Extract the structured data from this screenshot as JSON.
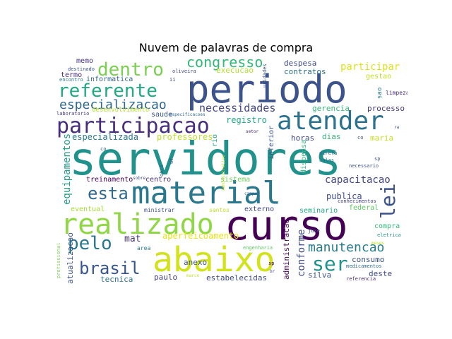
{
  "title": "Nuvem de palavras de compra",
  "palette": [
    "#440154",
    "#3b528b",
    "#21908d",
    "#5dc863",
    "#fde725"
  ],
  "words": [
    {
      "text": "servidores",
      "color": "#21918c"
    },
    {
      "text": "material",
      "color": "#2a788e"
    },
    {
      "text": "periodo",
      "color": "#3b528b"
    },
    {
      "text": "curso",
      "color": "#440154"
    },
    {
      "text": "abaixo",
      "color": "#d2e21b"
    },
    {
      "text": "realizado",
      "color": "#8fd744"
    },
    {
      "text": "atender",
      "color": "#2c728e"
    },
    {
      "text": "participacao",
      "color": "#472d7b"
    },
    {
      "text": "referente",
      "color": "#22a884"
    },
    {
      "text": "dentro",
      "color": "#7ad151"
    },
    {
      "text": "especializacao",
      "color": "#31688e"
    },
    {
      "text": "congresso",
      "color": "#35b779"
    },
    {
      "text": "necessidades",
      "color": "#414487"
    },
    {
      "text": "esta",
      "color": "#31688e"
    },
    {
      "text": "lei",
      "color": "#3b528b"
    },
    {
      "text": "pelo",
      "color": "#2a788e"
    },
    {
      "text": "brasil",
      "color": "#39568c"
    },
    {
      "text": "ser",
      "color": "#21918c"
    },
    {
      "text": "manutencao",
      "color": "#287c8e"
    },
    {
      "text": "equipamentos",
      "color": "#1f9e89"
    },
    {
      "text": "capacitacao",
      "color": "#414487"
    },
    {
      "text": "conforme",
      "color": "#3e4989"
    },
    {
      "text": "participar",
      "color": "#dde318"
    },
    {
      "text": "especializada",
      "color": "#2a788e"
    },
    {
      "text": "professores",
      "color": "#bddf26"
    },
    {
      "text": "registro",
      "color": "#22a884"
    },
    {
      "text": "gerencia",
      "color": "#35b779"
    },
    {
      "text": "processo",
      "color": "#443a83"
    },
    {
      "text": "despesa",
      "color": "#3e4989"
    },
    {
      "text": "contratos",
      "color": "#2e6e8e"
    },
    {
      "text": "execucao",
      "color": "#b5de2b"
    },
    {
      "text": "gestao",
      "color": "#c2df23"
    },
    {
      "text": "memo",
      "color": "#46327e"
    },
    {
      "text": "termo",
      "color": "#472d7b"
    },
    {
      "text": "destinado",
      "color": "#3b528b"
    },
    {
      "text": "encontro",
      "color": "#2c728e"
    },
    {
      "text": "informatica",
      "color": "#33638d"
    },
    {
      "text": "oliveira",
      "color": "#3e4989"
    },
    {
      "text": "unidades",
      "color": "#39568c"
    },
    {
      "text": "sao",
      "color": "#2a788e"
    },
    {
      "text": "limpeza",
      "color": "#482878"
    },
    {
      "text": "laboratorio",
      "color": "#443a83"
    },
    {
      "text": "desenvolvimento",
      "color": "#b5de2b"
    },
    {
      "text": "saude",
      "color": "#3b528b"
    },
    {
      "text": "especificacoes",
      "color": "#31688e"
    },
    {
      "text": "horas",
      "color": "#3e4989"
    },
    {
      "text": "dias",
      "color": "#35b779"
    },
    {
      "text": "maria",
      "color": "#c8e020"
    },
    {
      "text": "inferior",
      "color": "#3b528b"
    },
    {
      "text": "rio",
      "color": "#1fa187"
    },
    {
      "text": "setor",
      "color": "#482878"
    },
    {
      "text": "treinamento",
      "color": "#440154"
    },
    {
      "text": "centro",
      "color": "#472d7b"
    },
    {
      "text": "sobre",
      "color": "#3e4989"
    },
    {
      "text": "sistema",
      "color": "#6ccd5a"
    },
    {
      "text": "publica",
      "color": "#3e4989"
    },
    {
      "text": "dispensa",
      "color": "#2fb47c"
    },
    {
      "text": "direta",
      "color": "#31688e"
    },
    {
      "text": "aulas",
      "color": "#2a788e"
    },
    {
      "text": "necessario",
      "color": "#3b528b"
    },
    {
      "text": "eventual",
      "color": "#a5db36"
    },
    {
      "text": "ministrar",
      "color": "#3b528b"
    },
    {
      "text": "santos",
      "color": "#bddf26"
    },
    {
      "text": "externo",
      "color": "#3e4989"
    },
    {
      "text": "seminario",
      "color": "#22a884"
    },
    {
      "text": "federal",
      "color": "#5ec962"
    },
    {
      "text": "conhecimentos",
      "color": "#433e85"
    },
    {
      "text": "campus",
      "color": "#31688e"
    },
    {
      "text": "aperfeicoamento",
      "color": "#e7e419"
    },
    {
      "text": "mat",
      "color": "#46327e"
    },
    {
      "text": "area",
      "color": "#2a788e"
    },
    {
      "text": "anexo",
      "color": "#3b528b"
    },
    {
      "text": "nacional",
      "color": "#3e4989"
    },
    {
      "text": "tecnica",
      "color": "#2c728e"
    },
    {
      "text": "paulo",
      "color": "#433e85"
    },
    {
      "text": "marco",
      "color": "#bddf26"
    },
    {
      "text": "estabelecidas",
      "color": "#3e4989"
    },
    {
      "text": "engenharia",
      "color": "#5ec962"
    },
    {
      "text": "administracao",
      "color": "#440154"
    },
    {
      "text": "silva",
      "color": "#3b528b"
    },
    {
      "text": "consumo",
      "color": "#3b528b"
    },
    {
      "text": "medicamentos",
      "color": "#31688e"
    },
    {
      "text": "deste",
      "color": "#3e4989"
    },
    {
      "text": "referencia",
      "color": "#482878"
    },
    {
      "text": "compra",
      "color": "#35b779"
    },
    {
      "text": "eletrica",
      "color": "#21918c"
    },
    {
      "text": "juse",
      "color": "#3e4989"
    },
    {
      "text": "atualizacao",
      "color": "#3b528b"
    },
    {
      "text": "profissional",
      "color": "#7ad151"
    },
    {
      "text": "sp",
      "color": "#440154"
    },
    {
      "text": "obra",
      "color": "#31688e"
    },
    {
      "text": "df",
      "color": "#3b528b"
    },
    {
      "text": "co",
      "color": "#3e4989"
    },
    {
      "text": "ra",
      "color": "#3b528b"
    },
    {
      "text": "ii",
      "color": "#3e4989"
    },
    {
      "text": "administrativo",
      "color": "#bddf26"
    },
    {
      "text": "meses",
      "color": "#bddf26"
    },
    {
      "text": "sp",
      "color": "#3b528b"
    },
    {
      "text": "co",
      "color": "#31688e"
    },
    {
      "text": "br",
      "color": "#3b528b"
    }
  ]
}
